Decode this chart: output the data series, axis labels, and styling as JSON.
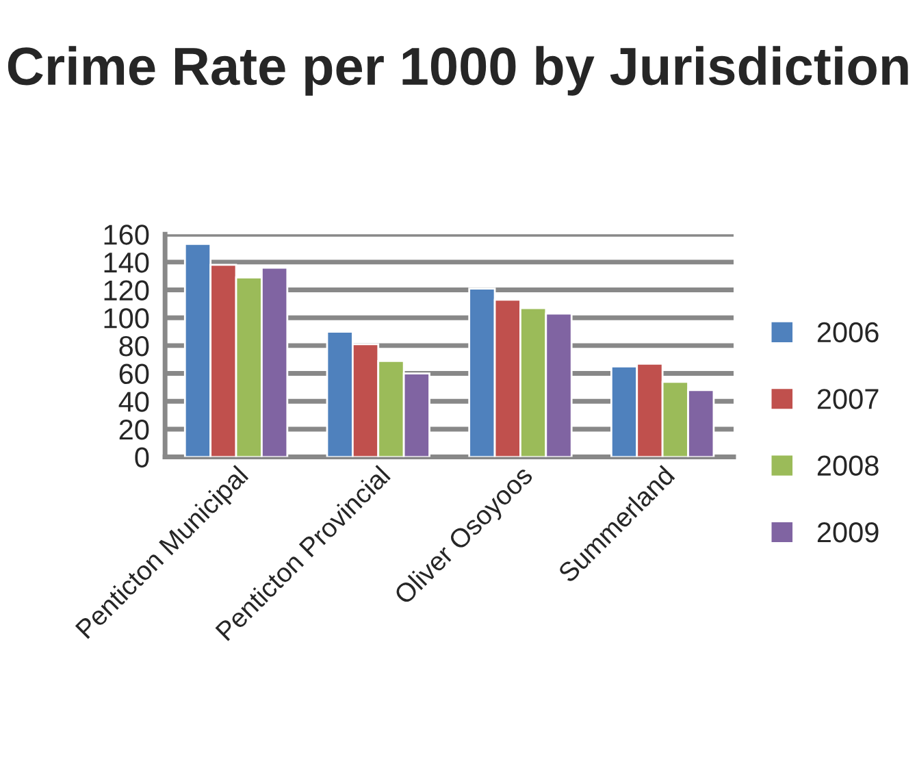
{
  "chart_data": {
    "type": "bar",
    "title": "Crime Rate per 1000 by Jurisdiction",
    "categories": [
      "Penticton Municipal",
      "Penticton Provincial",
      "Oliver Osoyoos",
      "Summerland"
    ],
    "series": [
      {
        "name": "2006",
        "color": "#4f81bd",
        "values": [
          153,
          90,
          121,
          65
        ]
      },
      {
        "name": "2007",
        "color": "#c0504d",
        "values": [
          138,
          81,
          113,
          67
        ]
      },
      {
        "name": "2008",
        "color": "#9bbb59",
        "values": [
          129,
          69,
          107,
          54
        ]
      },
      {
        "name": "2009",
        "color": "#8064a2",
        "values": [
          136,
          60,
          103,
          48
        ]
      }
    ],
    "ylim": [
      0,
      160
    ],
    "yticks": [
      0,
      20,
      40,
      60,
      80,
      100,
      120,
      140,
      160
    ],
    "grid": "y",
    "legend": "right"
  }
}
